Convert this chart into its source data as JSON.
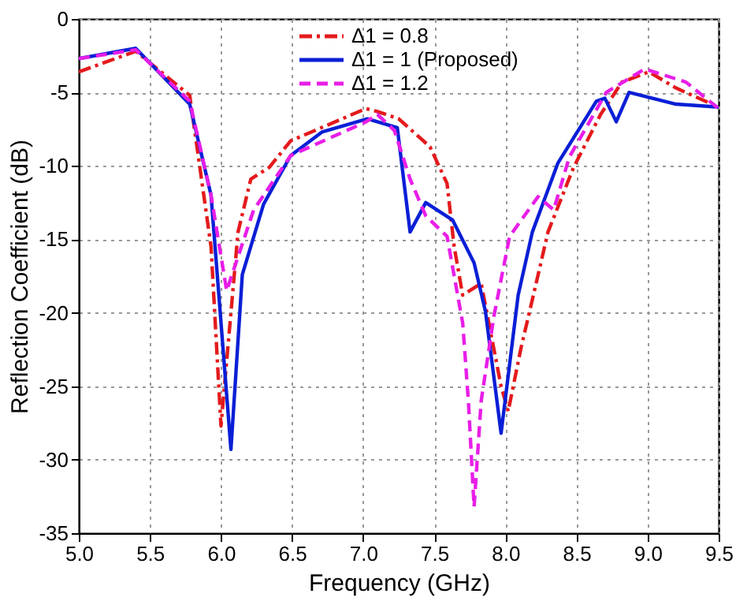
{
  "chart_data": {
    "type": "line",
    "xlabel": "Frequency (GHz)",
    "ylabel": "Reflection Coefficient (dB)",
    "xlim": [
      5.0,
      9.5
    ],
    "xticks": [
      {
        "value": 5.0,
        "label": "5.0"
      },
      5.5,
      {
        "value": 6.0,
        "label": "6.0"
      },
      6.5,
      {
        "value": 7.0,
        "label": "7.0"
      },
      7.5,
      {
        "value": 8.0,
        "label": "8.0"
      },
      8.5,
      {
        "value": 9.0,
        "label": "9.0"
      },
      9.5
    ],
    "ylim": [
      -35,
      0
    ],
    "yticks": [
      -35,
      -30,
      -25,
      -20,
      -15,
      -10,
      -5,
      0
    ],
    "grid": true,
    "legend": "top right",
    "series": [
      {
        "name": "Δ1 = 0.8",
        "color": "#e41a1c",
        "line_style": "dashdot",
        "x": [
          5.0,
          5.4,
          5.78,
          5.93,
          6.0,
          6.12,
          6.21,
          6.34,
          6.49,
          7.02,
          7.1,
          7.25,
          7.47,
          7.59,
          7.64,
          7.7,
          7.83,
          7.97,
          8.02,
          8.11,
          8.19,
          8.3,
          8.48,
          8.67,
          8.82,
          9.01,
          9.2,
          9.5
        ],
        "values": [
          -3.6,
          -2.2,
          -5.2,
          -15.5,
          -27.7,
          -14.5,
          -10.9,
          -10.1,
          -8.3,
          -6.1,
          -6.3,
          -6.8,
          -8.7,
          -11.2,
          -15.5,
          -18.8,
          -18.0,
          -25.0,
          -26.7,
          -22.4,
          -19.1,
          -14.5,
          -10.1,
          -6.5,
          -4.3,
          -3.6,
          -4.7,
          -6.0
        ]
      },
      {
        "name": "Δ1 = 1 (Proposed)",
        "color": "#0a1fd6",
        "line_style": "solid",
        "x": [
          5.0,
          5.4,
          5.78,
          5.93,
          6.07,
          6.15,
          6.3,
          6.49,
          6.71,
          7.03,
          7.24,
          7.33,
          7.44,
          7.63,
          7.78,
          7.86,
          7.97,
          8.09,
          8.19,
          8.37,
          8.64,
          8.7,
          8.78,
          8.87,
          9.2,
          9.5
        ],
        "values": [
          -2.7,
          -2.0,
          -5.8,
          -12.0,
          -29.3,
          -17.4,
          -12.6,
          -9.3,
          -7.7,
          -6.8,
          -7.4,
          -14.5,
          -12.5,
          -13.7,
          -16.6,
          -19.9,
          -28.2,
          -18.8,
          -14.5,
          -9.8,
          -5.6,
          -5.4,
          -7.0,
          -5.0,
          -5.8,
          -6.0
        ]
      },
      {
        "name": "Δ1 = 1.2",
        "color": "#e81ee8",
        "line_style": "dashed",
        "x": [
          5.0,
          5.4,
          5.78,
          5.93,
          6.04,
          6.23,
          6.49,
          7.02,
          7.1,
          7.22,
          7.33,
          7.44,
          7.59,
          7.7,
          7.74,
          7.78,
          7.83,
          7.92,
          8.03,
          8.23,
          8.34,
          8.45,
          8.71,
          8.98,
          9.27,
          9.5
        ],
        "values": [
          -2.7,
          -2.1,
          -5.6,
          -12.0,
          -18.5,
          -13.0,
          -9.3,
          -7.0,
          -6.5,
          -7.6,
          -10.9,
          -13.4,
          -14.8,
          -20.7,
          -26.0,
          -33.2,
          -26.0,
          -20.2,
          -14.8,
          -12.1,
          -13.0,
          -9.4,
          -5.0,
          -3.4,
          -4.3,
          -6.1
        ]
      }
    ]
  }
}
